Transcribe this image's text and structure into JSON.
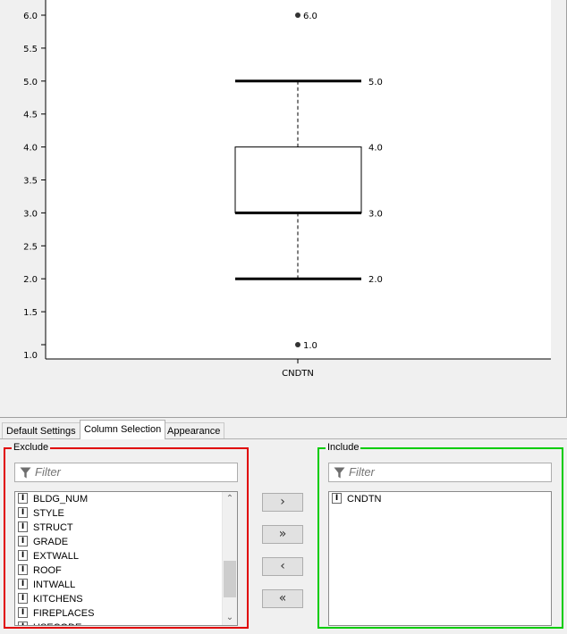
{
  "chart_data": {
    "type": "box",
    "categories": [
      "CNDTN"
    ],
    "yticks": [
      "1.0",
      "1.5",
      "2.0",
      "2.5",
      "3.0",
      "3.5",
      "4.0",
      "4.5",
      "5.0",
      "5.5",
      "6.0"
    ],
    "ylim": [
      1.0,
      6.0
    ],
    "box": {
      "whisker_low": 2.0,
      "q1": 3.0,
      "median": 3.0,
      "q3": 4.0,
      "whisker_high": 5.0,
      "outliers": [
        1.0,
        6.0
      ]
    },
    "labels": {
      "whisker_low": "2.0",
      "q1": "3.0",
      "q3": "4.0",
      "whisker_high": "5.0",
      "outlier_low": "1.0",
      "outlier_high": "6.0"
    }
  },
  "tabs": [
    {
      "label": "Default Settings",
      "active": false
    },
    {
      "label": "Column Selection",
      "active": true
    },
    {
      "label": "Appearance",
      "active": false
    }
  ],
  "exclude": {
    "title": "Exclude",
    "border_color": "#e00000",
    "filter_placeholder": "Filter",
    "type_icon": "I",
    "items": [
      "BLDG_NUM",
      "STYLE",
      "STRUCT",
      "GRADE",
      "EXTWALL",
      "ROOF",
      "INTWALL",
      "KITCHENS",
      "FIREPLACES",
      "USECODE"
    ]
  },
  "include": {
    "title": "Include",
    "border_color": "#00cc00",
    "filter_placeholder": "Filter",
    "type_icon": "I",
    "items": [
      "CNDTN"
    ]
  },
  "buttons": {
    "add": "›",
    "add_all": "»",
    "remove": "‹",
    "remove_all": "«"
  },
  "icons": {
    "filter": "funnel-icon",
    "scroll_up": "chevron-up-icon",
    "scroll_down": "chevron-down-icon"
  }
}
